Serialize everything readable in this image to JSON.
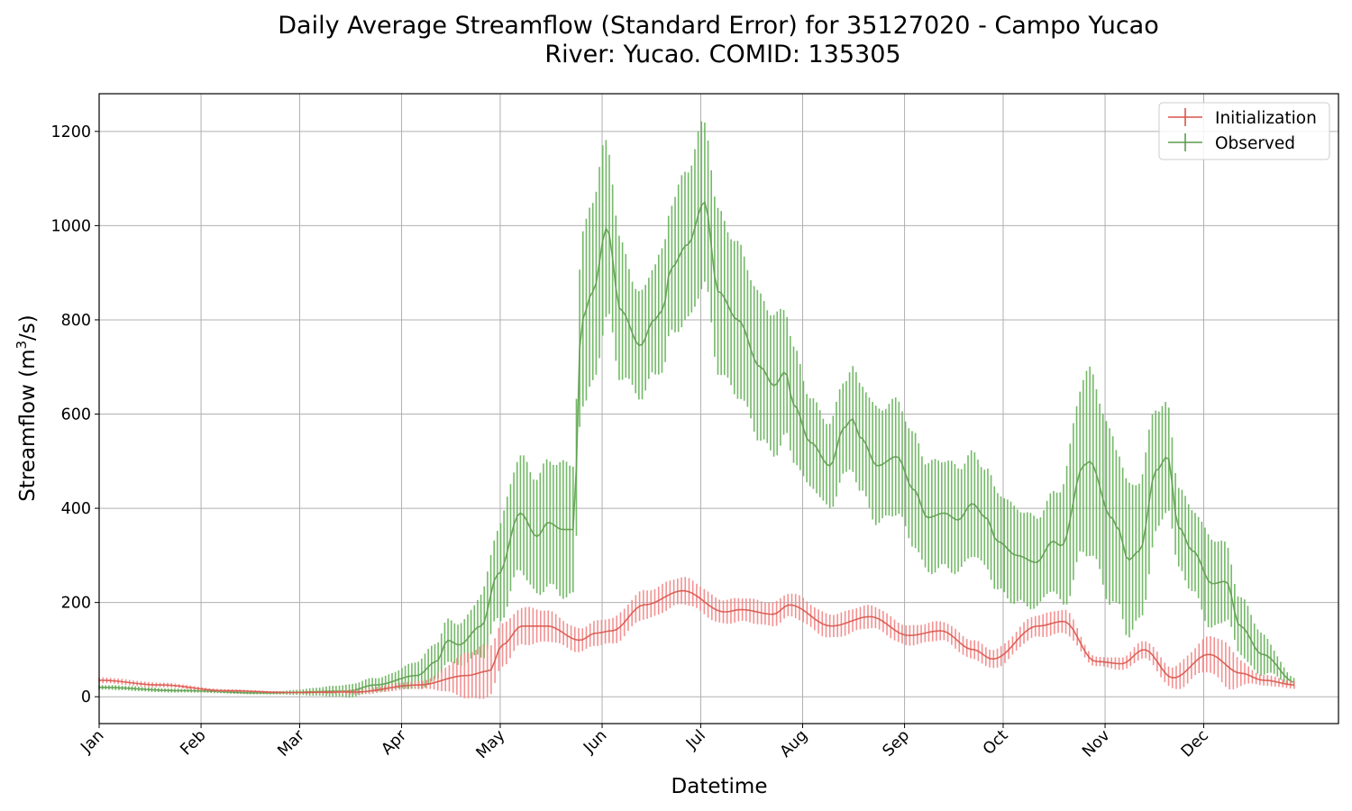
{
  "chart_data": {
    "type": "line",
    "title": "Daily Average Streamflow (Standard Error) for 35127020 - Campo Yucao",
    "subtitle": "River: Yucao. COMID: 135305",
    "xlabel": "Datetime",
    "ylabel_main": "Streamflow (m",
    "ylabel_sup": "3",
    "ylabel_tail": "/s)",
    "xlim": [
      1,
      378
    ],
    "ylim": [
      -57,
      1280
    ],
    "grid": true,
    "legend_position": "top-right",
    "x_ticks": [
      {
        "label": "Jan",
        "day": 1
      },
      {
        "label": "Feb",
        "day": 32
      },
      {
        "label": "Mar",
        "day": 62
      },
      {
        "label": "Apr",
        "day": 93
      },
      {
        "label": "May",
        "day": 123
      },
      {
        "label": "Jun",
        "day": 154
      },
      {
        "label": "Jul",
        "day": 184
      },
      {
        "label": "Aug",
        "day": 215
      },
      {
        "label": "Sep",
        "day": 246
      },
      {
        "label": "Oct",
        "day": 276
      },
      {
        "label": "Nov",
        "day": 307
      },
      {
        "label": "Dec",
        "day": 337
      }
    ],
    "y_ticks": [
      0,
      200,
      400,
      600,
      800,
      1000,
      1200
    ],
    "series": [
      {
        "name": "Initialization",
        "color": "#e8463c",
        "mean_anchors": [
          [
            1,
            35
          ],
          [
            20,
            25
          ],
          [
            40,
            13
          ],
          [
            60,
            9
          ],
          [
            80,
            10
          ],
          [
            100,
            25
          ],
          [
            115,
            45
          ],
          [
            122,
            55
          ],
          [
            126,
            110
          ],
          [
            132,
            150
          ],
          [
            140,
            150
          ],
          [
            150,
            120
          ],
          [
            155,
            135
          ],
          [
            160,
            140
          ],
          [
            170,
            195
          ],
          [
            182,
            225
          ],
          [
            195,
            180
          ],
          [
            200,
            185
          ],
          [
            210,
            175
          ],
          [
            215,
            195
          ],
          [
            228,
            150
          ],
          [
            240,
            170
          ],
          [
            252,
            130
          ],
          [
            262,
            140
          ],
          [
            272,
            100
          ],
          [
            278,
            80
          ],
          [
            292,
            150
          ],
          [
            300,
            160
          ],
          [
            310,
            75
          ],
          [
            318,
            70
          ],
          [
            325,
            100
          ],
          [
            334,
            40
          ],
          [
            345,
            90
          ],
          [
            355,
            50
          ],
          [
            362,
            35
          ],
          [
            372,
            25
          ]
        ],
        "error_anchors": [
          [
            1,
            6
          ],
          [
            60,
            2
          ],
          [
            100,
            8
          ],
          [
            120,
            55
          ],
          [
            130,
            40
          ],
          [
            150,
            25
          ],
          [
            170,
            30
          ],
          [
            200,
            25
          ],
          [
            230,
            25
          ],
          [
            260,
            20
          ],
          [
            280,
            20
          ],
          [
            300,
            25
          ],
          [
            310,
            10
          ],
          [
            330,
            20
          ],
          [
            340,
            30
          ],
          [
            350,
            45
          ],
          [
            360,
            12
          ],
          [
            372,
            8
          ]
        ]
      },
      {
        "name": "Observed",
        "color": "#4a9c3e",
        "mean_anchors": [
          [
            1,
            20
          ],
          [
            30,
            13
          ],
          [
            60,
            8
          ],
          [
            90,
            12
          ],
          [
            100,
            25
          ],
          [
            115,
            45
          ],
          [
            122,
            75
          ],
          [
            126,
            120
          ],
          [
            130,
            110
          ],
          [
            138,
            150
          ],
          [
            144,
            260
          ],
          [
            152,
            390
          ],
          [
            158,
            340
          ],
          [
            162,
            370
          ],
          [
            167,
            355
          ],
          [
            171,
            355
          ],
          [
            174,
            800
          ],
          [
            178,
            860
          ],
          [
            183,
            995
          ],
          [
            188,
            820
          ],
          [
            195,
            745
          ],
          [
            200,
            800
          ],
          [
            203,
            820
          ],
          [
            206,
            910
          ],
          [
            212,
            960
          ],
          [
            218,
            1050
          ],
          [
            223,
            860
          ],
          [
            230,
            800
          ],
          [
            238,
            700
          ],
          [
            243,
            660
          ],
          [
            247,
            690
          ],
          [
            250,
            620
          ],
          [
            256,
            540
          ],
          [
            263,
            490
          ],
          [
            268,
            570
          ],
          [
            271,
            590
          ],
          [
            274,
            550
          ],
          [
            280,
            490
          ],
          [
            287,
            510
          ],
          [
            293,
            440
          ],
          [
            298,
            380
          ],
          [
            304,
            390
          ],
          [
            309,
            375
          ],
          [
            314,
            410
          ],
          [
            319,
            380
          ],
          [
            323,
            330
          ],
          [
            330,
            300
          ],
          [
            337,
            285
          ],
          [
            343,
            330
          ],
          [
            346,
            320
          ],
          [
            354,
            490
          ],
          [
            356,
            500
          ],
          [
            364,
            380
          ],
          [
            366,
            360
          ],
          [
            370,
            290
          ],
          [
            374,
            310
          ],
          [
            380,
            480
          ],
          [
            384,
            510
          ],
          [
            388,
            360
          ],
          [
            393,
            310
          ],
          [
            400,
            240
          ],
          [
            405,
            245
          ],
          [
            410,
            150
          ],
          [
            418,
            90
          ],
          [
            430,
            30
          ]
        ],
        "error_anchors": [
          [
            1,
            5
          ],
          [
            60,
            3
          ],
          [
            100,
            15
          ],
          [
            130,
            45
          ],
          [
            152,
            120
          ],
          [
            170,
            140
          ],
          [
            178,
            200
          ],
          [
            195,
            110
          ],
          [
            218,
            170
          ],
          [
            240,
            150
          ],
          [
            260,
            90
          ],
          [
            280,
            120
          ],
          [
            300,
            115
          ],
          [
            320,
            105
          ],
          [
            340,
            95
          ],
          [
            356,
            190
          ],
          [
            375,
            150
          ],
          [
            390,
            85
          ],
          [
            400,
            95
          ],
          [
            410,
            60
          ],
          [
            430,
            10
          ]
        ]
      }
    ]
  }
}
